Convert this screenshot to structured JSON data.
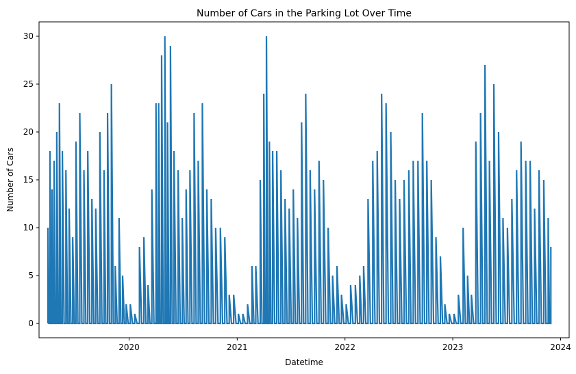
{
  "chart_data": {
    "type": "line",
    "title": "Number of Cars in the Parking Lot Over Time",
    "xlabel": "Datetime",
    "ylabel": "Number of Cars",
    "x_type": "date",
    "xlim": [
      "2019-03-02",
      "2024-01-30"
    ],
    "ylim": [
      -1.5,
      31.5
    ],
    "x_ticks": [
      {
        "date": "2020-01-01",
        "label": "2020"
      },
      {
        "date": "2021-01-01",
        "label": "2021"
      },
      {
        "date": "2022-01-01",
        "label": "2022"
      },
      {
        "date": "2023-01-01",
        "label": "2023"
      },
      {
        "date": "2024-01-01",
        "label": "2024"
      }
    ],
    "y_ticks": [
      0,
      5,
      10,
      15,
      20,
      25,
      30
    ],
    "grid": false,
    "series": [
      {
        "color": "#1f77b4",
        "x": [
          "2019-04-01",
          "2019-04-08",
          "2019-04-15",
          "2019-04-22",
          "2019-05-01",
          "2019-05-10",
          "2019-05-20",
          "2019-06-01",
          "2019-06-12",
          "2019-06-24",
          "2019-07-05",
          "2019-07-18",
          "2019-08-01",
          "2019-08-14",
          "2019-08-28",
          "2019-09-10",
          "2019-09-24",
          "2019-10-08",
          "2019-10-20",
          "2019-11-02",
          "2019-11-15",
          "2019-11-28",
          "2019-12-10",
          "2019-12-22",
          "2020-01-05",
          "2020-01-20",
          "2020-02-05",
          "2020-02-20",
          "2020-03-05",
          "2020-03-18",
          "2020-04-01",
          "2020-04-10",
          "2020-04-20",
          "2020-05-01",
          "2020-05-10",
          "2020-05-20",
          "2020-06-01",
          "2020-06-15",
          "2020-06-29",
          "2020-07-12",
          "2020-07-25",
          "2020-08-08",
          "2020-08-22",
          "2020-09-05",
          "2020-09-20",
          "2020-10-05",
          "2020-10-20",
          "2020-11-05",
          "2020-11-20",
          "2020-12-05",
          "2020-12-20",
          "2021-01-05",
          "2021-01-20",
          "2021-02-05",
          "2021-02-20",
          "2021-03-05",
          "2021-03-20",
          "2021-04-01",
          "2021-04-10",
          "2021-04-20",
          "2021-05-01",
          "2021-05-15",
          "2021-05-29",
          "2021-06-12",
          "2021-06-26",
          "2021-07-10",
          "2021-07-24",
          "2021-08-07",
          "2021-08-21",
          "2021-09-05",
          "2021-09-20",
          "2021-10-05",
          "2021-10-20",
          "2021-11-05",
          "2021-11-20",
          "2021-12-05",
          "2021-12-20",
          "2022-01-05",
          "2022-01-20",
          "2022-02-05",
          "2022-02-20",
          "2022-03-05",
          "2022-03-20",
          "2022-04-05",
          "2022-04-20",
          "2022-05-05",
          "2022-05-20",
          "2022-06-05",
          "2022-06-20",
          "2022-07-05",
          "2022-07-20",
          "2022-08-05",
          "2022-08-20",
          "2022-09-05",
          "2022-09-20",
          "2022-10-05",
          "2022-10-20",
          "2022-11-05",
          "2022-11-20",
          "2022-12-05",
          "2022-12-20",
          "2023-01-05",
          "2023-01-20",
          "2023-02-05",
          "2023-02-20",
          "2023-03-05",
          "2023-03-20",
          "2023-04-05",
          "2023-04-20",
          "2023-05-05",
          "2023-05-20",
          "2023-06-05",
          "2023-06-20",
          "2023-07-05",
          "2023-07-20",
          "2023-08-05",
          "2023-08-20",
          "2023-09-05",
          "2023-09-20",
          "2023-10-05",
          "2023-10-20",
          "2023-11-05",
          "2023-11-20",
          "2023-11-29"
        ],
        "y": [
          10,
          18,
          14,
          17,
          20,
          23,
          18,
          16,
          12,
          9,
          19,
          22,
          16,
          18,
          13,
          12,
          20,
          16,
          22,
          25,
          6,
          11,
          5,
          2,
          2,
          1,
          8,
          9,
          4,
          14,
          23,
          23,
          28,
          30,
          21,
          29,
          18,
          16,
          11,
          14,
          16,
          22,
          17,
          23,
          14,
          13,
          10,
          10,
          9,
          3,
          3,
          1,
          1,
          2,
          6,
          6,
          15,
          24,
          30,
          19,
          18,
          18,
          16,
          13,
          12,
          14,
          11,
          21,
          24,
          16,
          14,
          17,
          15,
          10,
          5,
          6,
          3,
          2,
          4,
          4,
          5,
          6,
          13,
          17,
          18,
          24,
          23,
          20,
          15,
          13,
          15,
          16,
          17,
          17,
          22,
          17,
          15,
          9,
          7,
          2,
          1,
          1,
          3,
          10,
          5,
          3,
          19,
          22,
          27,
          17,
          25,
          20,
          11,
          10,
          13,
          16,
          19,
          17,
          17,
          12,
          16,
          15,
          11,
          8
        ]
      }
    ]
  }
}
